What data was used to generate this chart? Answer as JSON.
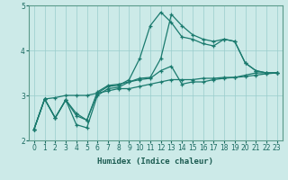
{
  "xlabel": "Humidex (Indice chaleur)",
  "ylabel": "",
  "background_color": "#cceae8",
  "grid_color": "#99cccc",
  "line_color": "#1a7a6e",
  "xlim": [
    -0.5,
    23.5
  ],
  "ylim": [
    2.0,
    5.0
  ],
  "yticks": [
    2,
    3,
    4,
    5
  ],
  "xticks": [
    0,
    1,
    2,
    3,
    4,
    5,
    6,
    7,
    8,
    9,
    10,
    11,
    12,
    13,
    14,
    15,
    16,
    17,
    18,
    19,
    20,
    21,
    22,
    23
  ],
  "lines": [
    {
      "x": [
        0,
        1,
        2,
        3,
        4,
        5,
        6,
        7,
        8,
        9,
        10,
        11,
        12,
        13,
        14,
        15,
        16,
        17,
        18,
        19,
        20,
        21,
        22,
        23
      ],
      "y": [
        2.25,
        2.92,
        2.95,
        3.0,
        3.0,
        3.0,
        3.05,
        3.1,
        3.15,
        3.15,
        3.2,
        3.25,
        3.3,
        3.35,
        3.35,
        3.35,
        3.38,
        3.38,
        3.4,
        3.4,
        3.42,
        3.45,
        3.48,
        3.5
      ]
    },
    {
      "x": [
        0,
        1,
        2,
        3,
        4,
        5,
        6,
        7,
        8,
        9,
        10,
        11,
        12,
        13,
        14,
        15,
        16,
        17,
        18,
        19,
        20,
        21,
        22,
        23
      ],
      "y": [
        2.25,
        2.92,
        2.5,
        2.9,
        2.55,
        2.45,
        3.05,
        3.2,
        3.22,
        3.35,
        3.82,
        4.55,
        4.85,
        4.62,
        4.3,
        4.25,
        4.15,
        4.1,
        4.25,
        4.2,
        3.72,
        3.55,
        3.5,
        3.5
      ]
    },
    {
      "x": [
        0,
        1,
        2,
        3,
        4,
        5,
        6,
        7,
        8,
        9,
        10,
        11,
        12,
        13,
        14,
        15,
        16,
        17,
        18,
        19,
        20,
        21,
        22,
        23
      ],
      "y": [
        2.25,
        2.92,
        2.5,
        2.9,
        2.6,
        2.45,
        3.08,
        3.22,
        3.25,
        3.3,
        3.38,
        3.4,
        3.82,
        4.8,
        4.55,
        4.35,
        4.25,
        4.2,
        4.25,
        4.2,
        3.72,
        3.55,
        3.5,
        3.5
      ]
    },
    {
      "x": [
        0,
        1,
        2,
        3,
        4,
        5,
        6,
        7,
        8,
        9,
        10,
        11,
        12,
        13,
        14,
        15,
        16,
        17,
        18,
        19,
        20,
        21,
        22,
        23
      ],
      "y": [
        2.25,
        2.92,
        2.5,
        2.9,
        2.35,
        2.28,
        3.0,
        3.15,
        3.18,
        3.3,
        3.35,
        3.38,
        3.55,
        3.65,
        3.25,
        3.3,
        3.3,
        3.35,
        3.38,
        3.4,
        3.45,
        3.5,
        3.5,
        3.5
      ]
    }
  ]
}
